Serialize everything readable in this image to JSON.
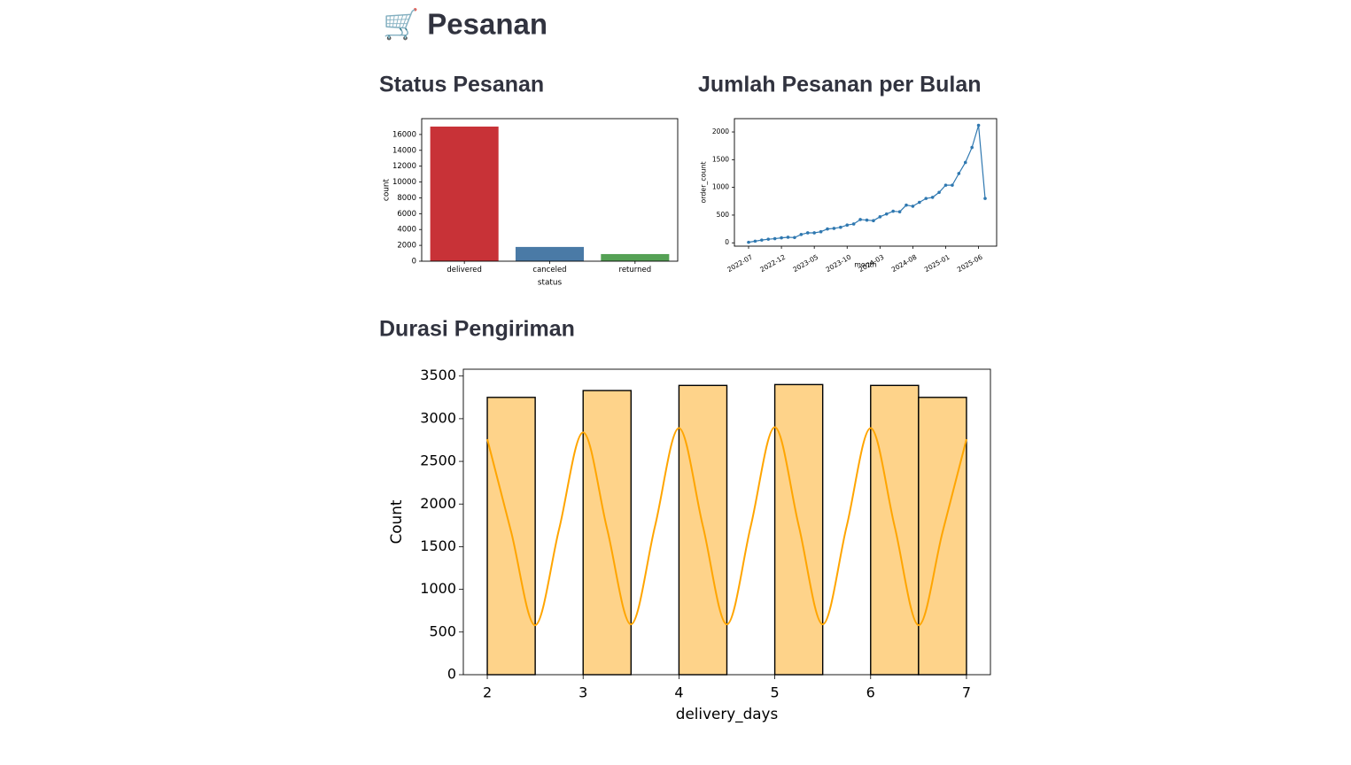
{
  "header": {
    "title": "🛒 Pesanan"
  },
  "chart_data": [
    {
      "type": "bar",
      "title": "Status Pesanan",
      "categories": [
        "delivered",
        "canceled",
        "returned"
      ],
      "values": [
        17000,
        1800,
        900
      ],
      "colors": [
        "#c83237",
        "#4a7aa6",
        "#55a155"
      ],
      "xlabel": "status",
      "ylabel": "count",
      "ylim": [
        0,
        18000
      ],
      "yticks": [
        0,
        2000,
        4000,
        6000,
        8000,
        10000,
        12000,
        14000,
        16000
      ]
    },
    {
      "type": "line",
      "title": "Jumlah Pesanan per Bulan",
      "categories": [
        "2022-07",
        null,
        null,
        null,
        null,
        "2022-12",
        null,
        null,
        null,
        null,
        "2023-05",
        null,
        null,
        null,
        null,
        "2023-10",
        null,
        null,
        null,
        null,
        "2024-03",
        null,
        null,
        null,
        null,
        "2024-08",
        null,
        null,
        null,
        null,
        "2025-01",
        null,
        null,
        null,
        null,
        "2025-06",
        null
      ],
      "values": [
        10,
        30,
        50,
        65,
        75,
        90,
        100,
        95,
        150,
        180,
        180,
        200,
        250,
        260,
        280,
        320,
        340,
        420,
        410,
        400,
        470,
        520,
        570,
        560,
        680,
        660,
        730,
        800,
        820,
        910,
        1040,
        1040,
        1250,
        1450,
        1720,
        2120,
        800
      ],
      "color": "#2f78b0",
      "marker": true,
      "xlabel": "month",
      "ylabel": "order_count",
      "ylim": [
        -60,
        2240
      ],
      "yticks": [
        0,
        500,
        1000,
        1500,
        2000
      ]
    },
    {
      "type": "histogram",
      "title": "Durasi Pengiriman",
      "bins": [
        2,
        2.5,
        3,
        3.5,
        4,
        4.5,
        5,
        5.5,
        6,
        6.5,
        7
      ],
      "values": [
        3250,
        0,
        3330,
        0,
        3390,
        0,
        3400,
        0,
        3390,
        3250
      ],
      "color": "#fed38a",
      "edgecolor": "#000000",
      "kde": {
        "color": "#ffa500",
        "x": [
          2,
          2.25,
          2.5,
          2.75,
          3,
          3.25,
          3.5,
          3.75,
          4,
          4.25,
          4.5,
          4.75,
          5,
          5.25,
          5.5,
          5.75,
          6,
          6.25,
          6.5,
          6.75,
          7
        ],
        "values": [
          2760,
          1670,
          580,
          1710,
          2840,
          1710,
          590,
          1740,
          2890,
          1740,
          590,
          1745,
          2900,
          1745,
          590,
          1740,
          2890,
          1740,
          580,
          1670,
          2760
        ]
      },
      "xlabel": "delivery_days",
      "ylabel": "Count",
      "xlim": [
        1.75,
        7.25
      ],
      "xticks": [
        2,
        3,
        4,
        5,
        6,
        7
      ],
      "ylim": [
        0,
        3580
      ],
      "yticks": [
        0,
        500,
        1000,
        1500,
        2000,
        2500,
        3000,
        3500
      ]
    }
  ]
}
